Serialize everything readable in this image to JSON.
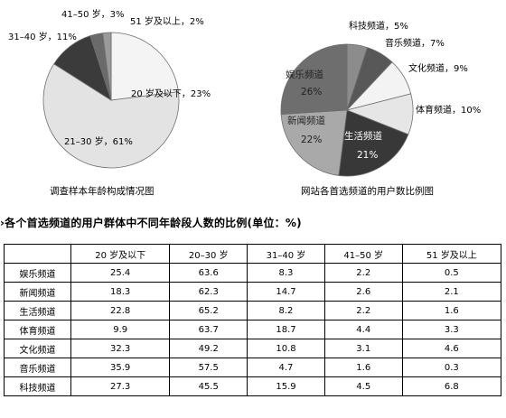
{
  "chart_data": [
    {
      "type": "pie",
      "title": "调查样本年龄构成情况图",
      "slices": [
        {
          "label": "20 岁及以下",
          "value": 23,
          "display": "20 岁及以下，23%",
          "color": "#f4f4f4"
        },
        {
          "label": "21–30 岁",
          "value": 61,
          "display": "21–30 岁，61%",
          "color": "#e3e3e3"
        },
        {
          "label": "31–40 岁",
          "value": 11,
          "display": "31–40 岁，11%",
          "color": "#3b3b3b"
        },
        {
          "label": "41–50 岁",
          "value": 3,
          "display": "41–50 岁，3%",
          "color": "#6a6a6a"
        },
        {
          "label": "51 岁及以上",
          "value": 2,
          "display": "51 岁及以上，2%",
          "color": "#9a9a9a"
        }
      ]
    },
    {
      "type": "pie",
      "title": "网站各首选频道的用户数比例图",
      "slices": [
        {
          "label": "科技频道",
          "value": 5,
          "display": "科技频道，5%",
          "color": "#8c8c8c"
        },
        {
          "label": "音乐频道",
          "value": 7,
          "display": "音乐频道，7%",
          "color": "#585858"
        },
        {
          "label": "文化频道",
          "value": 9,
          "display": "文化频道，9%",
          "color": "#f3f3f3"
        },
        {
          "label": "体育频道",
          "value": 10,
          "display": "体育频道，10%",
          "color": "#e6e6e6"
        },
        {
          "label": "生活频道",
          "value": 21,
          "display": "生活频道，21%",
          "color": "#383838"
        },
        {
          "label": "新闻频道",
          "value": 22,
          "display": "新闻频道，22%",
          "color": "#a9a9a9"
        },
        {
          "label": "娱乐频道",
          "value": 26,
          "display": "娱乐频道，26%",
          "color": "#6e6e6e"
        }
      ]
    },
    {
      "type": "table",
      "title": "各个首选频道的用户群体中不同年龄段人数的比例(单位：%)",
      "columns": [
        "20 岁及以下",
        "20–30 岁",
        "31–40 岁",
        "41–50 岁",
        "51 岁及以上"
      ],
      "rows": [
        {
          "label": "娱乐频道",
          "values": [
            "25.4",
            "63.6",
            "8.3",
            "2.2",
            "0.5"
          ]
        },
        {
          "label": "新闻频道",
          "values": [
            "18.3",
            "62.3",
            "14.7",
            "2.6",
            "2.1"
          ]
        },
        {
          "label": "生活频道",
          "values": [
            "22.8",
            "65.2",
            "8.2",
            "2.2",
            "1.6"
          ]
        },
        {
          "label": "体育频道",
          "values": [
            "9.9",
            "63.7",
            "18.7",
            "4.4",
            "3.3"
          ]
        },
        {
          "label": "文化频道",
          "values": [
            "32.3",
            "49.2",
            "10.8",
            "3.1",
            "4.6"
          ]
        },
        {
          "label": "音乐频道",
          "values": [
            "35.9",
            "57.5",
            "4.7",
            "1.6",
            "0.3"
          ]
        },
        {
          "label": "科技频道",
          "values": [
            "27.3",
            "45.5",
            "15.9",
            "4.5",
            "6.8"
          ]
        }
      ]
    }
  ]
}
